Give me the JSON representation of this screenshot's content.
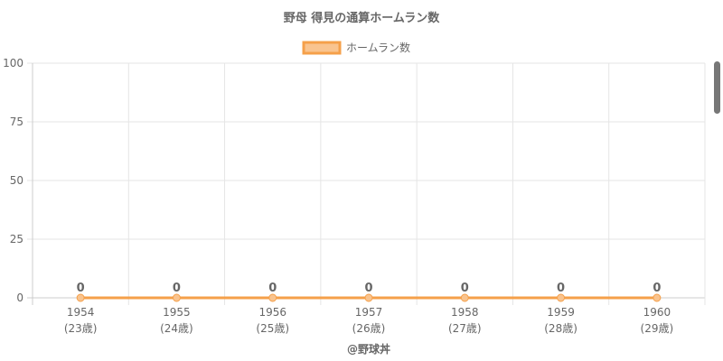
{
  "chart_data": {
    "type": "line",
    "title": "野母 得見の通算ホームラン数",
    "legend": {
      "label": "ホームラン数",
      "position": "top"
    },
    "categories": [
      [
        "1954",
        "(23歳)"
      ],
      [
        "1955",
        "(24歳)"
      ],
      [
        "1956",
        "(25歳)"
      ],
      [
        "1957",
        "(26歳)"
      ],
      [
        "1958",
        "(27歳)"
      ],
      [
        "1959",
        "(28歳)"
      ],
      [
        "1960",
        "(29歳)"
      ]
    ],
    "series": [
      {
        "name": "ホームラン数",
        "values": [
          0,
          0,
          0,
          0,
          0,
          0,
          0
        ]
      }
    ],
    "ylim": [
      0,
      100
    ],
    "yticks": [
      0,
      25,
      50,
      75,
      100
    ],
    "grid": true,
    "data_labels": true,
    "colors": {
      "line": "#f5a04a",
      "fill": "#f9c48f",
      "grid": "#e5e5e5",
      "text": "#666666"
    }
  },
  "footer": {
    "credit": "@野球丼"
  }
}
